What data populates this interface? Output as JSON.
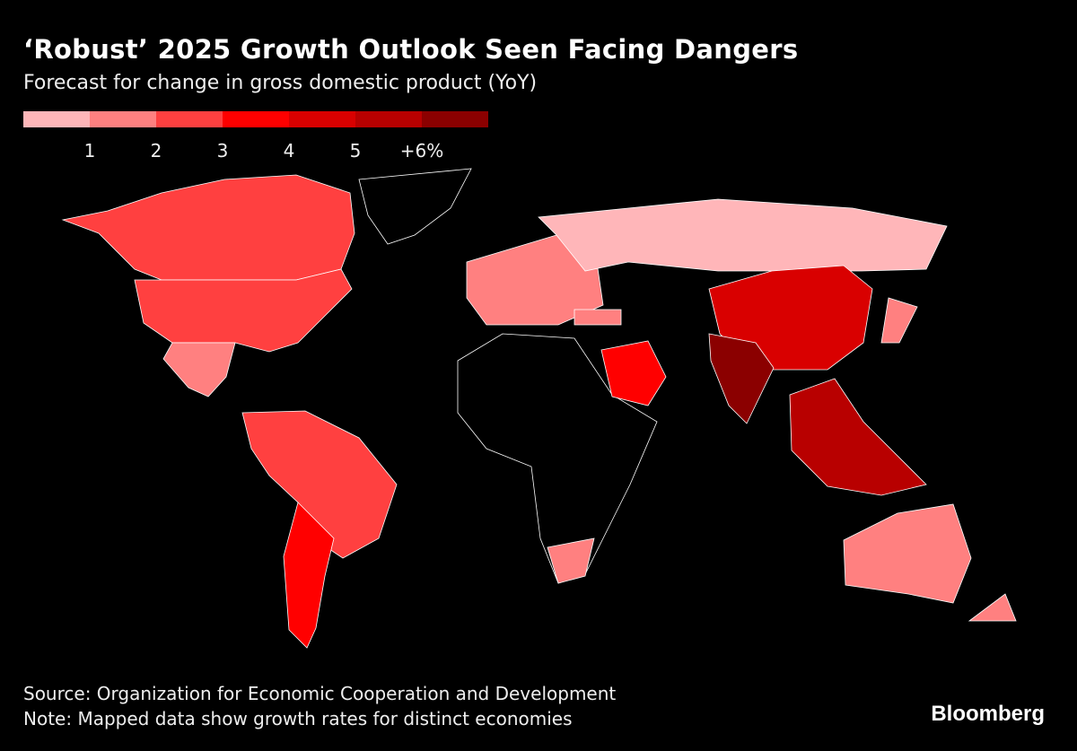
{
  "header": {
    "title": "‘Robust’ 2025 Growth Outlook Seen Facing Dangers",
    "subtitle": "Forecast for change in gross domestic product (YoY)"
  },
  "chart_data": {
    "type": "choropleth map",
    "title": "‘Robust’ 2025 Growth Outlook Seen Facing Dangers",
    "subtitle": "Forecast for change in gross domestic product (YoY)",
    "legend": {
      "colors": [
        "#ffb6b9",
        "#ff8080",
        "#ff4040",
        "#ff0000",
        "#d90000",
        "#b80000",
        "#8b0000"
      ],
      "ticks": [
        "1",
        "2",
        "3",
        "4",
        "5",
        "+6%"
      ]
    },
    "no_data_color": "#000000",
    "border_color": "#ffffff"
  },
  "footer": {
    "source": "Source: Organization for Economic Cooperation and Development",
    "note": "Note: Mapped data show growth rates for distinct economies",
    "brand": "Bloomberg"
  }
}
